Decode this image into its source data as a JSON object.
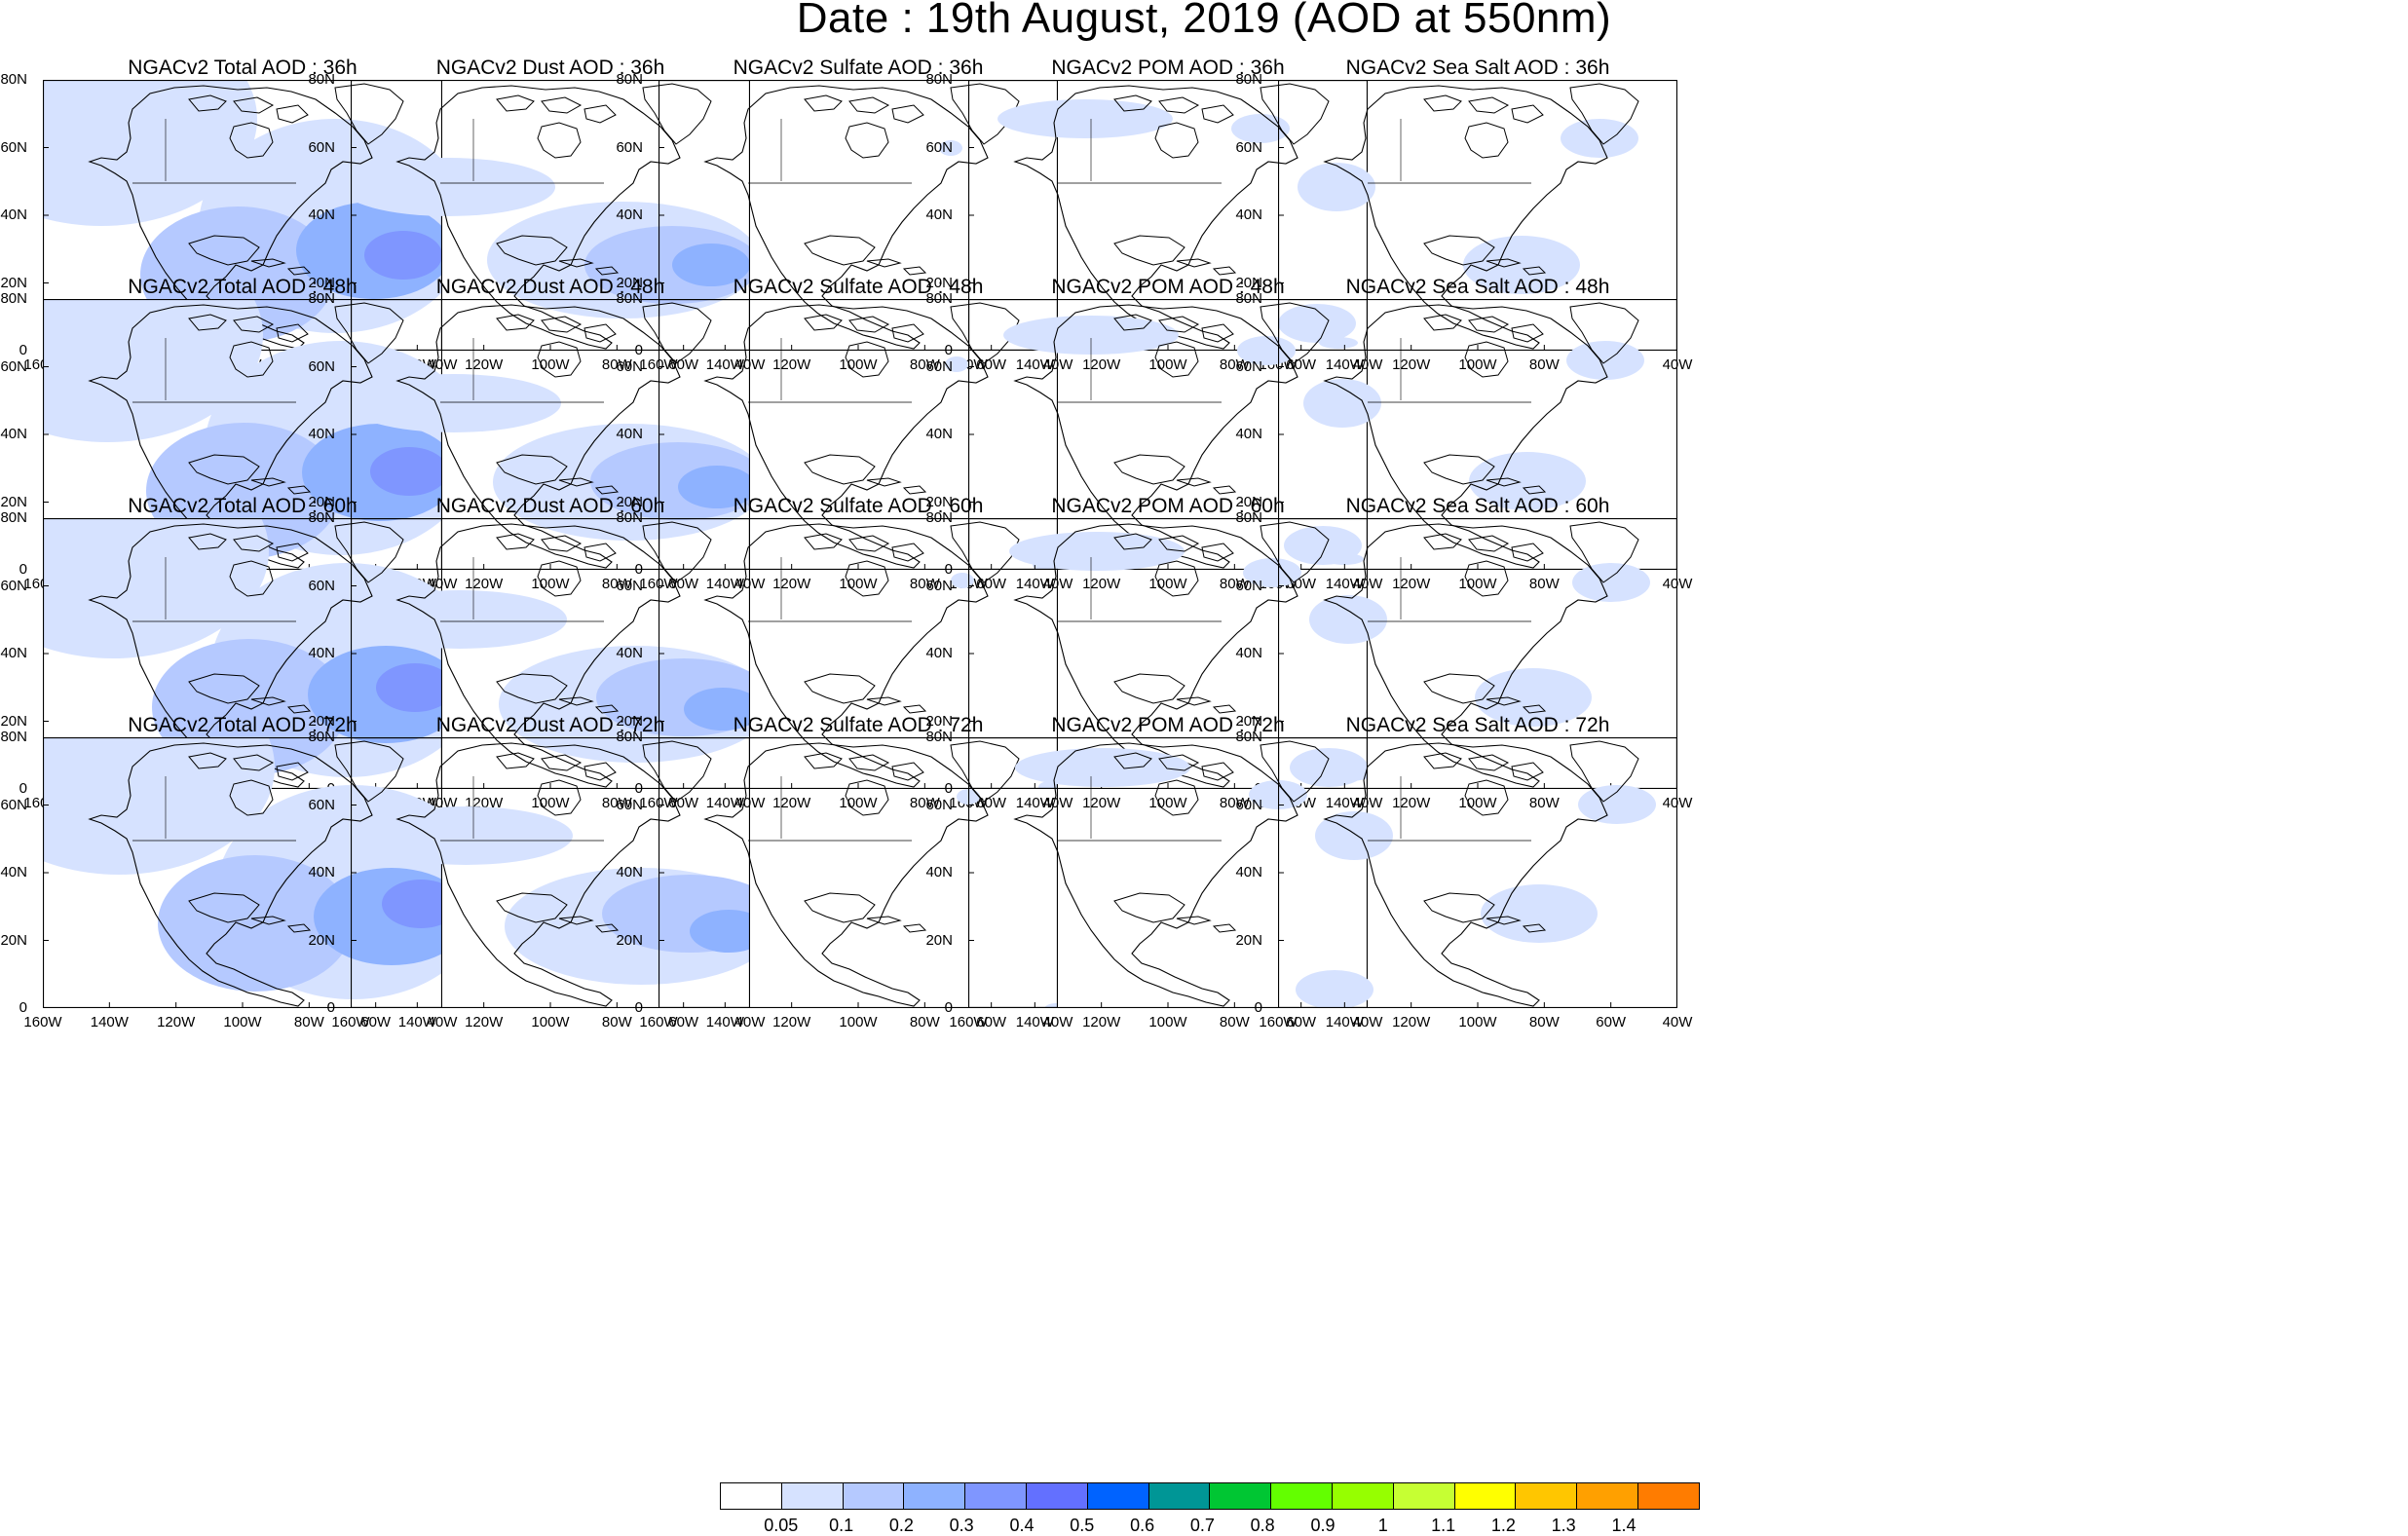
{
  "title": "Date : 19th August, 2019 (AOD at 550nm)",
  "y_ticks": [
    "80N",
    "60N",
    "40N",
    "20N",
    "0"
  ],
  "x_ticks": [
    "160W",
    "140W",
    "120W",
    "100W",
    "80W",
    "60W",
    "40W"
  ],
  "panels": [
    {
      "title": "NGACv2 Total AOD : 36h",
      "species": "total",
      "hour": 36
    },
    {
      "title": "NGACv2 Dust AOD : 36h",
      "species": "dust",
      "hour": 36
    },
    {
      "title": "NGACv2 Sulfate AOD : 36h",
      "species": "sulfate",
      "hour": 36
    },
    {
      "title": "NGACv2 POM AOD : 36h",
      "species": "pom",
      "hour": 36
    },
    {
      "title": "NGACv2 Sea Salt AOD : 36h",
      "species": "seasalt",
      "hour": 36
    },
    {
      "title": "NGACv2 Total AOD : 48h",
      "species": "total",
      "hour": 48
    },
    {
      "title": "NGACv2 Dust AOD : 48h",
      "species": "dust",
      "hour": 48
    },
    {
      "title": "NGACv2 Sulfate AOD : 48h",
      "species": "sulfate",
      "hour": 48
    },
    {
      "title": "NGACv2 POM AOD : 48h",
      "species": "pom",
      "hour": 48
    },
    {
      "title": "NGACv2 Sea Salt AOD : 48h",
      "species": "seasalt",
      "hour": 48
    },
    {
      "title": "NGACv2 Total AOD : 60h",
      "species": "total",
      "hour": 60
    },
    {
      "title": "NGACv2 Dust AOD : 60h",
      "species": "dust",
      "hour": 60
    },
    {
      "title": "NGACv2 Sulfate AOD : 60h",
      "species": "sulfate",
      "hour": 60
    },
    {
      "title": "NGACv2 POM AOD : 60h",
      "species": "pom",
      "hour": 60
    },
    {
      "title": "NGACv2 Sea Salt AOD : 60h",
      "species": "seasalt",
      "hour": 60
    },
    {
      "title": "NGACv2 Total AOD : 72h",
      "species": "total",
      "hour": 72
    },
    {
      "title": "NGACv2 Dust AOD : 72h",
      "species": "dust",
      "hour": 72
    },
    {
      "title": "NGACv2 Sulfate AOD : 72h",
      "species": "sulfate",
      "hour": 72
    },
    {
      "title": "NGACv2 POM AOD : 72h",
      "species": "pom",
      "hour": 72
    },
    {
      "title": "NGACv2 Sea Salt  AOD : 72h",
      "species": "seasalt",
      "hour": 72
    }
  ],
  "colorbar": {
    "colors": [
      "#ffffff",
      "#d6e2ff",
      "#b5c9ff",
      "#8eb2ff",
      "#7f96ff",
      "#6370ff",
      "#0063ff",
      "#009696",
      "#00c633",
      "#63ff00",
      "#96ff00",
      "#c6ff33",
      "#ffff00",
      "#ffc600",
      "#ffa000",
      "#ff7c00",
      "#ff1900"
    ],
    "labels": [
      "0.05",
      "0.1",
      "0.2",
      "0.3",
      "0.4",
      "0.5",
      "0.6",
      "0.7",
      "0.8",
      "0.9",
      "1",
      "1.1",
      "1.2",
      "1.3",
      "1.4"
    ]
  }
}
